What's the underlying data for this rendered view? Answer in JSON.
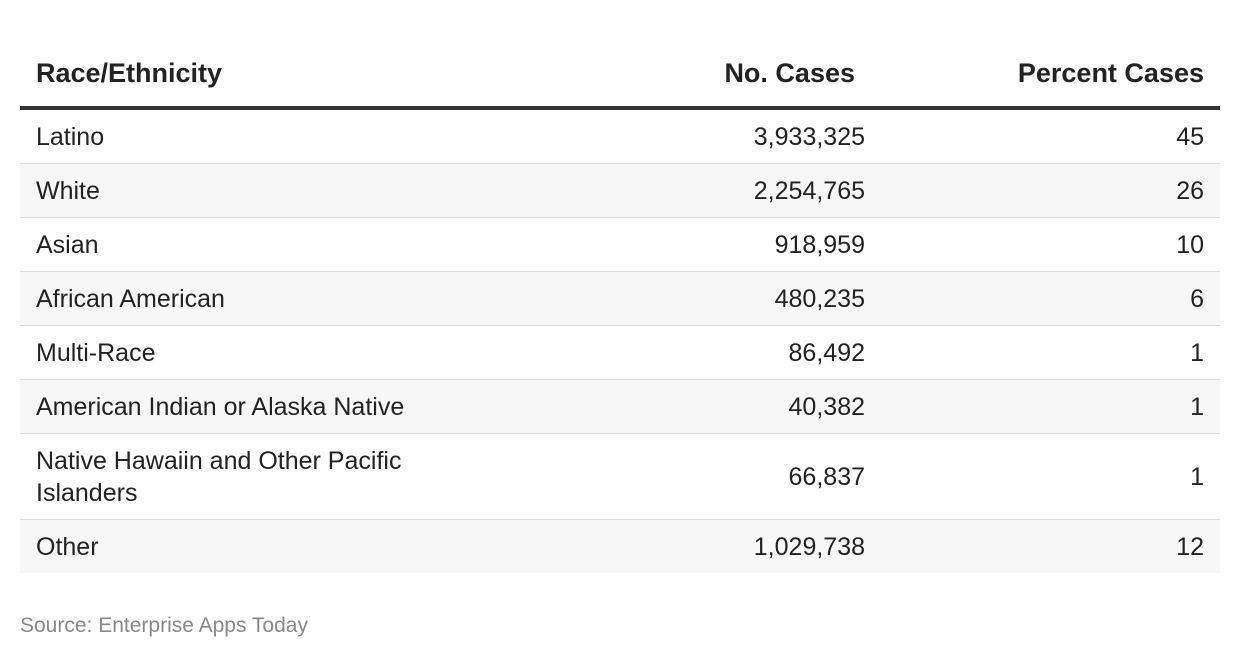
{
  "chart_data": {
    "type": "table",
    "columns": [
      "Race/Ethnicity",
      "No. Cases",
      "Percent Cases"
    ],
    "rows": [
      [
        "Latino",
        "3,933,325",
        "45"
      ],
      [
        "White",
        "2,254,765",
        "26"
      ],
      [
        "Asian",
        "918,959",
        "10"
      ],
      [
        "African American",
        "480,235",
        "6"
      ],
      [
        "Multi-Race",
        "86,492",
        "1"
      ],
      [
        "American Indian or Alaska Native",
        "40,382",
        "1"
      ],
      [
        "Native Hawaiin and Other Pacific Islanders",
        "66,837",
        "1"
      ],
      [
        "Other",
        "1,029,738",
        "12"
      ]
    ]
  },
  "source": "Source: Enterprise Apps Today",
  "colors": {
    "header_rule": "#333333",
    "row_stripe": "#f7f7f7",
    "row_divider": "#dddddd",
    "source_text": "#888888"
  }
}
